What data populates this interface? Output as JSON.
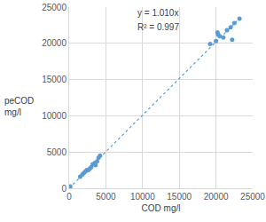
{
  "chart_data": {
    "type": "scatter",
    "xlabel": "COD mg/l",
    "ylabel": "peCOD\nmg/l",
    "annotations": [
      "y = 1.010x",
      "R² = 0.997"
    ],
    "xlim": [
      0,
      25000
    ],
    "xticks": [
      0,
      5000,
      10000,
      15000,
      20000,
      25000
    ],
    "ylim": [
      0,
      25000
    ],
    "yticks": [
      0,
      5000,
      10000,
      15000,
      20000,
      25000
    ],
    "grid": true,
    "series": [
      {
        "type": "scatter",
        "color": "#5b9bd5",
        "marker": "circle",
        "x": [
          100,
          150,
          1500,
          1800,
          2000,
          2200,
          2400,
          2600,
          2800,
          3000,
          3200,
          3500,
          3600,
          3800,
          4000,
          4200,
          19200,
          20000,
          20200,
          20300,
          20500,
          21000,
          21500,
          22000,
          22200,
          22500,
          23200
        ],
        "values": [
          200,
          250,
          1600,
          1900,
          2100,
          2300,
          2500,
          2500,
          2700,
          2900,
          3300,
          3500,
          3200,
          3700,
          4200,
          4500,
          19900,
          20300,
          21500,
          21200,
          21000,
          20800,
          21800,
          22200,
          20500,
          22800,
          23400
        ]
      },
      {
        "type": "line",
        "color": "#5b9bd5",
        "line_style": "dotted",
        "x": [
          0,
          23200
        ],
        "values": [
          0,
          23430
        ]
      }
    ]
  }
}
